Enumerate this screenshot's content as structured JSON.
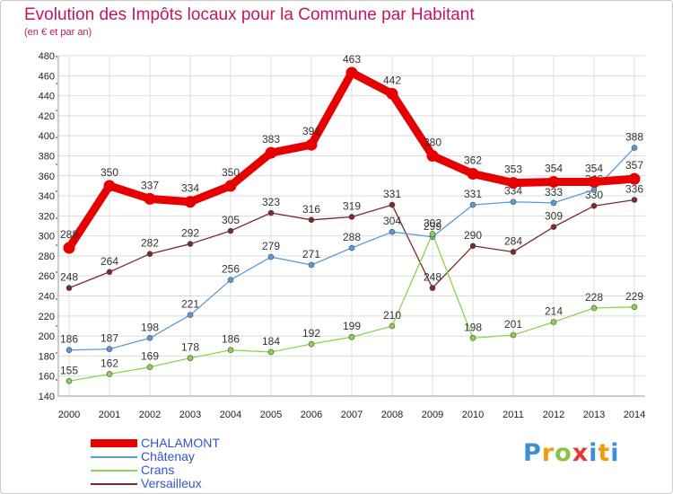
{
  "chart_data": {
    "type": "line",
    "title": "Evolution des Impôts locaux pour la Commune par Habitant",
    "subtitle": "(en € et par an)",
    "x": [
      "2000",
      "2001",
      "2002",
      "2003",
      "2004",
      "2005",
      "2006",
      "2007",
      "2008",
      "2009",
      "2010",
      "2011",
      "2012",
      "2013",
      "2014"
    ],
    "ylim": [
      140,
      480
    ],
    "yticks": [
      140,
      160,
      180,
      200,
      220,
      240,
      260,
      280,
      300,
      320,
      340,
      360,
      380,
      400,
      420,
      440,
      460,
      480
    ],
    "grid": true,
    "legend_placement": "bottom-left",
    "series": [
      {
        "name": "CHALAMONT",
        "color": "#e60000",
        "values": [
          288,
          350,
          337,
          334,
          350,
          383,
          391,
          463,
          442,
          380,
          362,
          353,
          354,
          354,
          357
        ],
        "labels": [
          "288",
          "350",
          "337",
          "334",
          "350",
          "383",
          "391",
          "463",
          "442",
          "380",
          "362",
          "353",
          "354",
          "354",
          "357"
        ]
      },
      {
        "name": "Châtenay",
        "color": "#5b9bd5",
        "values": [
          186,
          187,
          198,
          221,
          256,
          279,
          271,
          288,
          304,
          299,
          331,
          334,
          333,
          346,
          388
        ],
        "labels": [
          "186",
          "187",
          "198",
          "221",
          "256",
          "279",
          "271",
          "288",
          "304",
          "299",
          "331",
          "334",
          "333",
          "346",
          "388"
        ]
      },
      {
        "name": "Crans",
        "color": "#8fd14f",
        "values": [
          155,
          162,
          169,
          178,
          186,
          184,
          192,
          199,
          210,
          302,
          198,
          201,
          214,
          228,
          229
        ],
        "labels": [
          "155",
          "162",
          "169",
          "178",
          "186",
          "184",
          "192",
          "199",
          "210",
          "302",
          "198",
          "201",
          "214",
          "228",
          "229"
        ]
      },
      {
        "name": "Versailleux",
        "color": "#7a2a2a",
        "values": [
          248,
          264,
          282,
          292,
          305,
          323,
          316,
          319,
          331,
          248,
          290,
          284,
          309,
          330,
          336
        ],
        "labels": [
          "248",
          "264",
          "282",
          "292",
          "305",
          "323",
          "316",
          "319",
          "331",
          "248",
          "290",
          "284",
          "309",
          "330",
          "336"
        ]
      }
    ]
  },
  "logo": {
    "letters": [
      "P",
      "r",
      "o",
      "x",
      "i",
      "t",
      "i"
    ]
  }
}
